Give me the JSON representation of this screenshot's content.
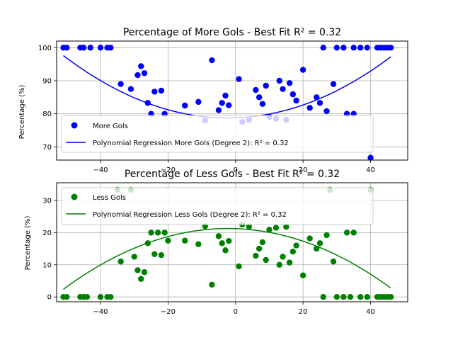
{
  "chart_data": [
    {
      "type": "scatter",
      "title": "Percentage of More Gols - Best Fit R² = 0.32",
      "xlabel": "",
      "ylabel": "Percentage (%)",
      "xlim": [
        -53,
        51
      ],
      "ylim": [
        66.0,
        102.0
      ],
      "x_ticks": [
        -40,
        -20,
        0,
        20,
        40
      ],
      "y_ticks": [
        70,
        80,
        90,
        100
      ],
      "grid": true,
      "legend_position": "lower-left",
      "legend": [
        {
          "label": "More Gols",
          "kind": "marker",
          "color": "#0000ff"
        },
        {
          "label": "Polynomial Regression More Gols (Degree 2): R² = 0.32",
          "kind": "line",
          "color": "#0000ff"
        }
      ],
      "series": [
        {
          "name": "More Gols",
          "color": "#0000ff",
          "points": [
            [
              -51,
              100
            ],
            [
              -50,
              100
            ],
            [
              -46,
              100
            ],
            [
              -45,
              100
            ],
            [
              -43,
              100
            ],
            [
              -40,
              100
            ],
            [
              -38,
              100
            ],
            [
              -37,
              100
            ],
            [
              -34,
              89
            ],
            [
              -31,
              87.5
            ],
            [
              -29,
              91.7
            ],
            [
              -28,
              94.4
            ],
            [
              -27,
              92.3
            ],
            [
              -26,
              83.3
            ],
            [
              -25,
              80
            ],
            [
              -24,
              86.7
            ],
            [
              -22,
              87
            ],
            [
              -21,
              80
            ],
            [
              -15,
              82.5
            ],
            [
              -11,
              83.6
            ],
            [
              -9,
              78
            ],
            [
              -7,
              96.2
            ],
            [
              -5,
              81.1
            ],
            [
              -4,
              83.3
            ],
            [
              -3,
              85.5
            ],
            [
              -2,
              82.6
            ],
            [
              1,
              90.5
            ],
            [
              2,
              77.5
            ],
            [
              4,
              78.1
            ],
            [
              6,
              87.2
            ],
            [
              7,
              85
            ],
            [
              8,
              83
            ],
            [
              9,
              88.5
            ],
            [
              10,
              79.1
            ],
            [
              12,
              78.5
            ],
            [
              13,
              90
            ],
            [
              14,
              87.5
            ],
            [
              15,
              78.2
            ],
            [
              16,
              89.3
            ],
            [
              17,
              85.9
            ],
            [
              18,
              84
            ],
            [
              20,
              93.3
            ],
            [
              22,
              81.8
            ],
            [
              24,
              85
            ],
            [
              25,
              83.3
            ],
            [
              26,
              100
            ],
            [
              27,
              80.8
            ],
            [
              29,
              89
            ],
            [
              30,
              100
            ],
            [
              32,
              100
            ],
            [
              33,
              80
            ],
            [
              35,
              100
            ],
            [
              35,
              80
            ],
            [
              37,
              100
            ],
            [
              39,
              100
            ],
            [
              40,
              66.7
            ],
            [
              42,
              100
            ],
            [
              43,
              100
            ],
            [
              44,
              100
            ],
            [
              45,
              100
            ],
            [
              46,
              100
            ]
          ]
        },
        {
          "name": "Polynomial Regression More Gols (Degree 2)",
          "color": "#0000ff",
          "fit": {
            "degree": 2,
            "coefficients": [
              0.00795,
              0.036,
              78.77
            ],
            "x_range": [
              -51,
              46
            ]
          }
        }
      ]
    },
    {
      "type": "scatter",
      "title": "Percentage of Less Gols - Best Fit R² = 0.32",
      "xlabel": "",
      "ylabel": "Percentage (%)",
      "xlim": [
        -53,
        51
      ],
      "ylim": [
        -1.5,
        35.5
      ],
      "x_ticks": [
        -40,
        -20,
        0,
        20,
        40
      ],
      "y_ticks": [
        0,
        10,
        20,
        30
      ],
      "grid": true,
      "legend_position": "upper-left",
      "legend": [
        {
          "label": "Less Gols",
          "kind": "marker",
          "color": "#008000"
        },
        {
          "label": "Polynomial Regression Less Gols (Degree 2): R² = 0.32",
          "kind": "line",
          "color": "#008000"
        }
      ],
      "series": [
        {
          "name": "Less Gols",
          "color": "#008000",
          "points": [
            [
              -51,
              0
            ],
            [
              -50,
              0
            ],
            [
              -46,
              0
            ],
            [
              -45,
              0
            ],
            [
              -44,
              0
            ],
            [
              -40,
              0
            ],
            [
              -38,
              0
            ],
            [
              -37,
              0
            ],
            [
              -35,
              33.3
            ],
            [
              -34,
              11
            ],
            [
              -31,
              33.3
            ],
            [
              -30,
              12.5
            ],
            [
              -29,
              8.3
            ],
            [
              -28,
              5.6
            ],
            [
              -27,
              7.7
            ],
            [
              -26,
              16.7
            ],
            [
              -25,
              20
            ],
            [
              -24,
              13.3
            ],
            [
              -23,
              20
            ],
            [
              -22,
              13
            ],
            [
              -21,
              20
            ],
            [
              -20,
              17.5
            ],
            [
              -15,
              17.5
            ],
            [
              -11,
              16.4
            ],
            [
              -9,
              22
            ],
            [
              -7,
              3.8
            ],
            [
              -5,
              18.9
            ],
            [
              -4,
              16.7
            ],
            [
              -3,
              14.5
            ],
            [
              -2,
              17.4
            ],
            [
              1,
              9.5
            ],
            [
              2,
              22.5
            ],
            [
              4,
              21.9
            ],
            [
              6,
              12.8
            ],
            [
              7,
              15
            ],
            [
              8,
              17
            ],
            [
              9,
              11.5
            ],
            [
              10,
              20.9
            ],
            [
              12,
              21.5
            ],
            [
              13,
              10
            ],
            [
              14,
              12.5
            ],
            [
              15,
              21.8
            ],
            [
              16,
              10.7
            ],
            [
              17,
              14.1
            ],
            [
              18,
              16
            ],
            [
              20,
              6.7
            ],
            [
              22,
              18.2
            ],
            [
              24,
              15
            ],
            [
              25,
              16.7
            ],
            [
              26,
              0
            ],
            [
              27,
              19.2
            ],
            [
              28,
              33.3
            ],
            [
              29,
              11
            ],
            [
              30,
              0
            ],
            [
              32,
              0
            ],
            [
              33,
              20
            ],
            [
              34,
              0
            ],
            [
              35,
              20
            ],
            [
              37,
              0
            ],
            [
              39,
              0
            ],
            [
              40,
              33.3
            ],
            [
              42,
              0
            ],
            [
              43,
              0
            ],
            [
              44,
              0
            ],
            [
              45,
              0
            ],
            [
              46,
              0
            ]
          ]
        },
        {
          "name": "Polynomial Regression Less Gols (Degree 2)",
          "color": "#008000",
          "fit": {
            "degree": 2,
            "coefficients": [
              -0.00795,
              -0.036,
              21.23
            ],
            "x_range": [
              -51,
              46
            ]
          }
        }
      ]
    }
  ]
}
